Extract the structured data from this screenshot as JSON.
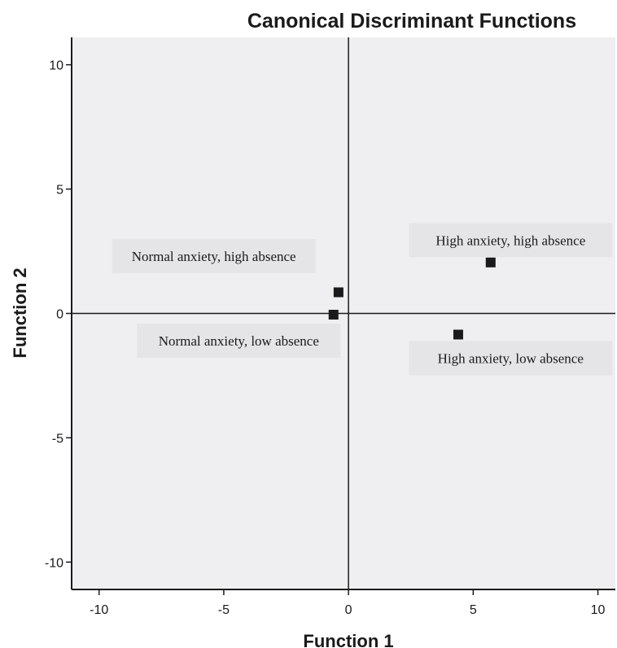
{
  "chart_data": {
    "type": "scatter",
    "title": "Canonical Discriminant Functions",
    "xlabel": "Function 1",
    "ylabel": "Function 2",
    "xlim": [
      -11.1,
      10.7
    ],
    "ylim": [
      -11.1,
      11.1
    ],
    "xticks": [
      "-10",
      "-5",
      "0",
      "5",
      "10"
    ],
    "yticks": [
      "-10",
      "-5",
      "0",
      "5",
      "10"
    ],
    "grid": false,
    "plot_background": "#efeff1",
    "marker_color": "#1a1a1a",
    "annotation_background": "#e5e5e7",
    "points": [
      {
        "x": -0.4,
        "y": 0.85
      },
      {
        "x": -0.6,
        "y": -0.05
      },
      {
        "x": 5.7,
        "y": 2.05
      },
      {
        "x": 4.4,
        "y": -0.85
      }
    ],
    "annotations": [
      {
        "text": "Normal anxiety, high absence",
        "x": -5.4,
        "y": 2.3
      },
      {
        "text": "Normal anxiety, low absence",
        "x": -4.4,
        "y": -1.1
      },
      {
        "text": "High anxiety, high absence",
        "x": 6.5,
        "y": 2.95
      },
      {
        "text": "High anxiety, low absence",
        "x": 6.5,
        "y": -1.8
      }
    ]
  }
}
